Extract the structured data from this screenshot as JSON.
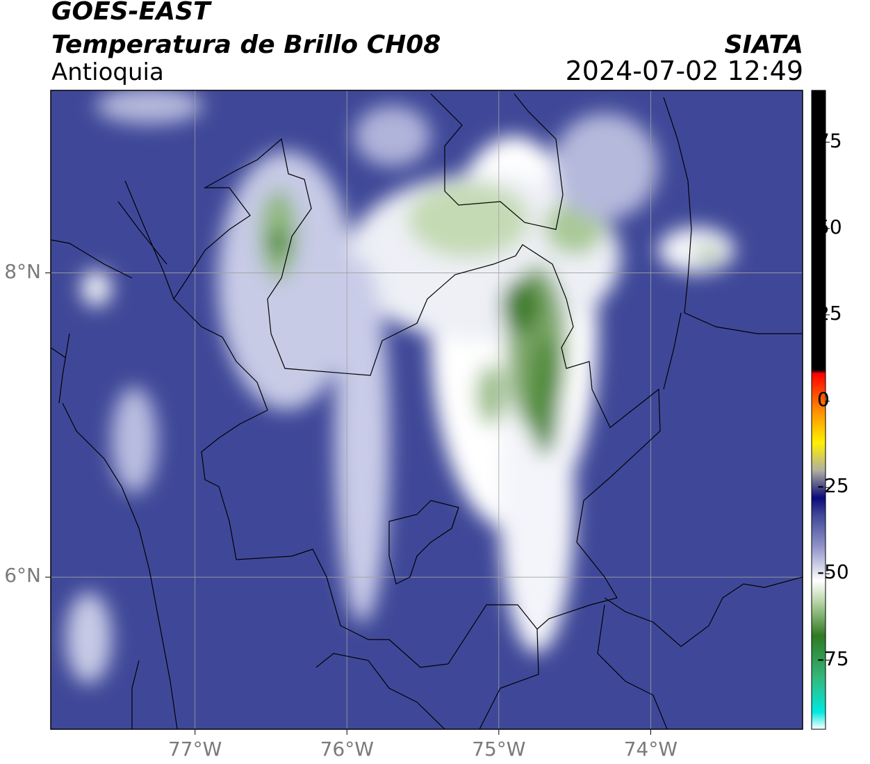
{
  "header": {
    "satellite": "GOES-EAST",
    "product": "Temperatura de Brillo CH08",
    "region": "Antioquia",
    "organization": "SIATA",
    "timestamp": "2024-07-02 12:49"
  },
  "map": {
    "lon_range": [
      -77.95,
      -73.0
    ],
    "lat_range": [
      5.0,
      9.2
    ],
    "x_ticks": [
      {
        "value": -77,
        "label": "77°W"
      },
      {
        "value": -76,
        "label": "76°W"
      },
      {
        "value": -75,
        "label": "75°W"
      },
      {
        "value": -74,
        "label": "74°W"
      }
    ],
    "y_ticks": [
      {
        "value": 8,
        "label": "8°N"
      },
      {
        "value": 6,
        "label": "6°N"
      }
    ],
    "gridlines": true,
    "background_color": "#3f4898"
  },
  "colorbar": {
    "range": [
      -95,
      90
    ],
    "ticks": [
      {
        "value": 75,
        "label": "75"
      },
      {
        "value": 50,
        "label": "50"
      },
      {
        "value": 25,
        "label": "25"
      },
      {
        "value": 0,
        "label": "0"
      },
      {
        "value": -25,
        "label": "-25"
      },
      {
        "value": -50,
        "label": "-50"
      },
      {
        "value": -75,
        "label": "-75"
      }
    ],
    "stops": [
      {
        "value": -95,
        "color": "#ffffff"
      },
      {
        "value": -90,
        "color": "#00e8e0"
      },
      {
        "value": -80,
        "color": "#33b87a"
      },
      {
        "value": -68,
        "color": "#2f7a22"
      },
      {
        "value": -58,
        "color": "#b9d6a8"
      },
      {
        "value": -52,
        "color": "#ffffff"
      },
      {
        "value": -42,
        "color": "#8e92c8"
      },
      {
        "value": -33,
        "color": "#3f4898"
      },
      {
        "value": -28,
        "color": "#0a0a7a"
      },
      {
        "value": -20,
        "color": "#b0b0a0"
      },
      {
        "value": -12,
        "color": "#fff000"
      },
      {
        "value": -3,
        "color": "#ff9000"
      },
      {
        "value": 8,
        "color": "#ff0000"
      },
      {
        "value": 9,
        "color": "#000000"
      },
      {
        "value": 90,
        "color": "#000000"
      }
    ]
  },
  "cloud_features": [
    {
      "lon": -74.9,
      "lat": 7.6,
      "rx": 0.55,
      "ry": 1.3,
      "color": "#ffffff"
    },
    {
      "lon": -75.1,
      "lat": 8.1,
      "rx": 0.9,
      "ry": 0.55,
      "color": "#eef0f6"
    },
    {
      "lon": -74.75,
      "lat": 6.5,
      "rx": 0.25,
      "ry": 1.0,
      "color": "#f4f5fa"
    },
    {
      "lon": -74.75,
      "lat": 7.5,
      "rx": 0.2,
      "ry": 0.55,
      "color": "#7ea86a"
    },
    {
      "lon": -74.85,
      "lat": 7.78,
      "rx": 0.13,
      "ry": 0.18,
      "color": "#3f7d2b"
    },
    {
      "lon": -74.7,
      "lat": 7.2,
      "rx": 0.1,
      "ry": 0.4,
      "color": "#4f8a3a"
    },
    {
      "lon": -75.05,
      "lat": 7.2,
      "rx": 0.1,
      "ry": 0.2,
      "color": "#9cc08a"
    },
    {
      "lon": -75.2,
      "lat": 8.35,
      "rx": 0.4,
      "ry": 0.25,
      "color": "#c4dab4"
    },
    {
      "lon": -74.5,
      "lat": 8.3,
      "rx": 0.2,
      "ry": 0.18,
      "color": "#a9c996"
    },
    {
      "lon": -76.4,
      "lat": 7.95,
      "rx": 0.45,
      "ry": 0.85,
      "color": "#c7cbe6"
    },
    {
      "lon": -76.45,
      "lat": 8.25,
      "rx": 0.12,
      "ry": 0.3,
      "color": "#8fb87a"
    },
    {
      "lon": -76.45,
      "lat": 8.2,
      "rx": 0.06,
      "ry": 0.08,
      "color": "#2f7a22"
    },
    {
      "lon": -75.9,
      "lat": 6.9,
      "rx": 0.18,
      "ry": 1.2,
      "color": "#c9cce8"
    },
    {
      "lon": -73.7,
      "lat": 8.15,
      "rx": 0.25,
      "ry": 0.15,
      "color": "#f4f5fa"
    },
    {
      "lon": -73.62,
      "lat": 8.12,
      "rx": 0.08,
      "ry": 0.05,
      "color": "#8fb87a"
    },
    {
      "lon": -77.65,
      "lat": 7.9,
      "rx": 0.1,
      "ry": 0.12,
      "color": "#eef0f6"
    },
    {
      "lon": -77.4,
      "lat": 6.9,
      "rx": 0.15,
      "ry": 0.35,
      "color": "#b9bde0"
    },
    {
      "lon": -77.7,
      "lat": 5.6,
      "rx": 0.15,
      "ry": 0.3,
      "color": "#c7cbe6"
    },
    {
      "lon": -74.3,
      "lat": 8.7,
      "rx": 0.35,
      "ry": 0.35,
      "color": "#b5b9dc"
    },
    {
      "lon": -77.3,
      "lat": 9.1,
      "rx": 0.35,
      "ry": 0.12,
      "color": "#b5b9dc"
    },
    {
      "lon": -75.7,
      "lat": 8.9,
      "rx": 0.25,
      "ry": 0.2,
      "color": "#b0b4da"
    }
  ]
}
